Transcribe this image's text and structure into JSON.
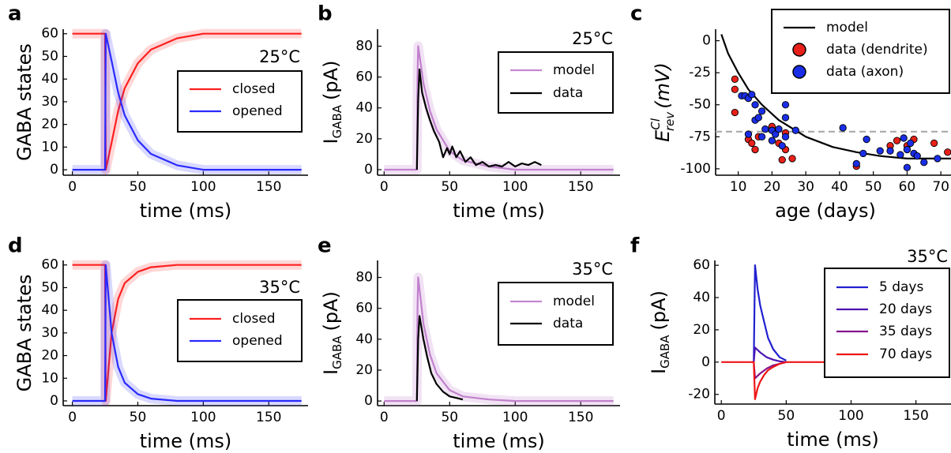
{
  "chart_data": [
    {
      "type": "line",
      "panel_label": "a",
      "annotation": "25°C",
      "xlabel": "time (ms)",
      "ylabel": "GABA states",
      "xlim": [
        -7,
        180
      ],
      "ylim": [
        -2.4,
        62
      ],
      "xticks": [
        0,
        50,
        100,
        150
      ],
      "yticks": [
        0,
        10,
        20,
        30,
        40,
        50,
        60
      ],
      "legend": "right",
      "series": [
        {
          "name": "closed",
          "color": "#ff2020",
          "x": [
            0,
            25,
            25.5,
            30,
            35,
            40,
            50,
            60,
            80,
            100,
            175
          ],
          "values": [
            60,
            60,
            0,
            12,
            26,
            36,
            47,
            53,
            58,
            60,
            60
          ]
        },
        {
          "name": "opened",
          "color": "#2a2aff",
          "x": [
            0,
            25,
            25.5,
            30,
            35,
            40,
            50,
            60,
            80,
            100,
            175
          ],
          "values": [
            0,
            0,
            60,
            48,
            34,
            24,
            13,
            7,
            2,
            0,
            0
          ]
        }
      ]
    },
    {
      "type": "line",
      "panel_label": "b",
      "annotation": "25°C",
      "xlabel": "time (ms)",
      "ylabel": {
        "base": "I",
        "sub": "GABA",
        "unit": "(pA)"
      },
      "xlim": [
        -5,
        180
      ],
      "ylim": [
        -3.6,
        91
      ],
      "xticks": [
        0,
        50,
        100,
        150
      ],
      "yticks": [
        0,
        20,
        40,
        60,
        80
      ],
      "legend": "top-right",
      "series": [
        {
          "name": "model",
          "color": "#b060c0",
          "glow": true,
          "x": [
            0,
            25,
            25.5,
            26,
            28,
            30,
            35,
            40,
            50,
            60,
            80,
            100,
            175
          ],
          "values": [
            0,
            0,
            60,
            80,
            68,
            56,
            38,
            26,
            12,
            6,
            2,
            0,
            0
          ]
        },
        {
          "name": "data",
          "color": "#000000",
          "x": [
            25,
            26,
            27,
            29,
            32,
            35,
            38,
            42,
            45,
            48,
            50,
            52,
            55,
            58,
            62,
            66,
            70,
            75,
            80,
            85,
            90,
            95,
            100,
            105,
            110,
            115,
            120
          ],
          "values": [
            0,
            45,
            65,
            50,
            40,
            32,
            25,
            18,
            8,
            14,
            10,
            15,
            8,
            12,
            5,
            8,
            3,
            5,
            2,
            3,
            2,
            5,
            2,
            4,
            3,
            5,
            3
          ]
        }
      ]
    },
    {
      "type": "scatter",
      "panel_label": "c",
      "xlabel": "age (days)",
      "ylabel": {
        "base": "E",
        "sup": "Cl",
        "sub": "rev",
        "unit": "(mV)"
      },
      "xlim": [
        3.3,
        73
      ],
      "ylim": [
        -105,
        9
      ],
      "xticks": [
        10,
        20,
        30,
        40,
        50,
        60,
        70
      ],
      "yticks": [
        0,
        -25,
        -50,
        -75,
        -100
      ],
      "legend": "top-right",
      "hline": {
        "value": -71,
        "color": "#aaaaaa"
      },
      "series": [
        {
          "name": "model",
          "mode": "line",
          "color": "#000000",
          "x": [
            5,
            7,
            10,
            13,
            17,
            22,
            30,
            38,
            45,
            52,
            60,
            67,
            73
          ],
          "values": [
            5,
            -10,
            -25,
            -38,
            -50,
            -62,
            -75,
            -83,
            -87,
            -90,
            -92,
            -92,
            -92
          ]
        },
        {
          "name": "data (dendrite)",
          "mode": "markers",
          "color": "#e8201a",
          "x": [
            9,
            9,
            9,
            13,
            14,
            15,
            16,
            20,
            22,
            23,
            24,
            24,
            26,
            45,
            55,
            57,
            60,
            62,
            68,
            72
          ],
          "values": [
            -30,
            -38,
            -56,
            -77,
            -80,
            -85,
            -75,
            -67,
            -80,
            -93,
            -72,
            -85,
            -92,
            -98,
            -82,
            -78,
            -82,
            -77,
            -80,
            -87
          ]
        },
        {
          "name": "data (axon)",
          "mode": "markers",
          "color": "#1a2ee8",
          "x": [
            11,
            12,
            13,
            14,
            15,
            15,
            16,
            17,
            13,
            17,
            18,
            20,
            20,
            21,
            22,
            24,
            24,
            23,
            24,
            27,
            41,
            45,
            47,
            48,
            52,
            55,
            58,
            59,
            60,
            60,
            62,
            63,
            65,
            69,
            61
          ],
          "values": [
            -43,
            -43,
            -45,
            -42,
            -50,
            -62,
            -60,
            -55,
            -73,
            -75,
            -69,
            -78,
            -70,
            -73,
            -69,
            -50,
            -60,
            -82,
            -75,
            -70,
            -68,
            -96,
            -88,
            -77,
            -86,
            -86,
            -89,
            -76,
            -85,
            -99,
            -88,
            -90,
            -95,
            -92,
            -80
          ]
        }
      ]
    },
    {
      "type": "line",
      "panel_label": "d",
      "annotation": "35°C",
      "xlabel": "time (ms)",
      "ylabel": "GABA states",
      "xlim": [
        -7,
        180
      ],
      "ylim": [
        -2.1,
        62
      ],
      "xticks": [
        0,
        50,
        100,
        150
      ],
      "yticks": [
        0,
        10,
        20,
        30,
        40,
        50,
        60
      ],
      "legend": "right",
      "series": [
        {
          "name": "closed",
          "color": "#ff2020",
          "x": [
            0,
            25,
            25.5,
            30,
            35,
            40,
            50,
            60,
            80,
            100,
            175
          ],
          "values": [
            60,
            60,
            0,
            30,
            45,
            52,
            57,
            59,
            60,
            60,
            60
          ]
        },
        {
          "name": "opened",
          "color": "#2a2aff",
          "x": [
            0,
            25,
            25.5,
            30,
            35,
            40,
            50,
            60,
            80,
            100,
            175
          ],
          "values": [
            0,
            0,
            60,
            30,
            15,
            8,
            3,
            1,
            0,
            0,
            0
          ]
        }
      ]
    },
    {
      "type": "line",
      "panel_label": "e",
      "annotation": "35°C",
      "xlabel": "time (ms)",
      "ylabel": {
        "base": "I",
        "sub": "GABA",
        "unit": "(pA)"
      },
      "xlim": [
        -5,
        180
      ],
      "ylim": [
        -3,
        91
      ],
      "xticks": [
        0,
        50,
        100,
        150
      ],
      "yticks": [
        0,
        20,
        40,
        60,
        80
      ],
      "legend": "top-right",
      "series": [
        {
          "name": "model",
          "color": "#b060c0",
          "glow": true,
          "x": [
            0,
            25,
            25.5,
            26,
            28,
            30,
            35,
            40,
            50,
            60,
            80,
            100,
            175
          ],
          "values": [
            0,
            0,
            60,
            80,
            65,
            50,
            30,
            18,
            7,
            3,
            1,
            0,
            0
          ]
        },
        {
          "name": "data",
          "color": "#000000",
          "x": [
            25,
            26,
            27,
            28,
            30,
            33,
            36,
            40,
            45,
            50,
            55,
            60
          ],
          "values": [
            0,
            40,
            55,
            50,
            40,
            28,
            18,
            11,
            6,
            3,
            2,
            1
          ]
        }
      ]
    },
    {
      "type": "line",
      "panel_label": "f",
      "annotation": "35°C",
      "xlabel": "time (ms)",
      "ylabel": {
        "base": "I",
        "sub": "GABA",
        "unit": "(pA)"
      },
      "xlim": [
        -5,
        177
      ],
      "ylim": [
        -26,
        63
      ],
      "xticks": [
        0,
        50,
        100,
        150
      ],
      "yticks": [
        -20,
        0,
        20,
        40,
        60
      ],
      "legend": "right",
      "series": [
        {
          "name": "5 days",
          "color": "#2020d0",
          "x": [
            25,
            26,
            28,
            30,
            33,
            36,
            40,
            45,
            50
          ],
          "values": [
            0,
            60,
            45,
            35,
            25,
            15,
            8,
            3,
            1
          ]
        },
        {
          "name": "20 days",
          "color": "#4b14b4",
          "x": [
            25,
            26,
            30,
            35,
            40,
            45,
            50
          ],
          "values": [
            0,
            9,
            6,
            3,
            1.5,
            0.5,
            0
          ]
        },
        {
          "name": "35 days",
          "color": "#86128c",
          "x": [
            25,
            26,
            30,
            35,
            40,
            45,
            50
          ],
          "values": [
            0,
            -10,
            -7,
            -4,
            -2,
            -1,
            0
          ]
        },
        {
          "name": "70 days",
          "color": "#f01414",
          "x": [
            0,
            25,
            26,
            28,
            30,
            33,
            36,
            40,
            45,
            50,
            175
          ],
          "values": [
            0,
            0,
            -23,
            -16,
            -12,
            -8,
            -5,
            -3,
            -1,
            0,
            0
          ]
        }
      ]
    }
  ]
}
